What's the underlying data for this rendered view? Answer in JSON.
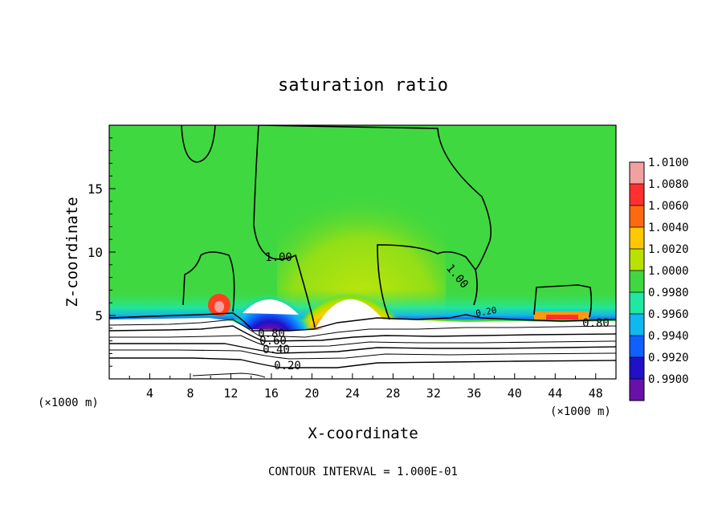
{
  "chart_data": {
    "type": "heatmap",
    "title": "saturation ratio",
    "xlabel": "X-coordinate",
    "ylabel": "Z-coordinate",
    "x_units_left": "(×1000 m)",
    "x_units_right": "(×1000 m)",
    "xlim": [
      0,
      50
    ],
    "ylim": [
      0,
      20
    ],
    "x_ticks": [
      4,
      8,
      12,
      16,
      20,
      24,
      28,
      32,
      36,
      40,
      44,
      48
    ],
    "y_ticks": [
      5,
      10,
      15
    ],
    "colorbar": {
      "levels": [
        "1.0100",
        "1.0080",
        "1.0060",
        "1.0040",
        "1.0020",
        "1.0000",
        "0.9980",
        "0.9960",
        "0.9940",
        "0.9920",
        "0.9900"
      ],
      "colors": [
        "#f2a0a0",
        "#ff3030",
        "#ff6a10",
        "#ffc800",
        "#b8e000",
        "#40d840",
        "#20e8a0",
        "#10b8f0",
        "#1060ff",
        "#2010c8",
        "#6a10a8"
      ]
    },
    "contour_labels": [
      "1.00",
      "1.00",
      "0.80",
      "0.80",
      "0.60",
      "0.40",
      "0.20",
      "0.20"
    ],
    "footer": "CONTOUR INTERVAL = 1.000E-01"
  }
}
